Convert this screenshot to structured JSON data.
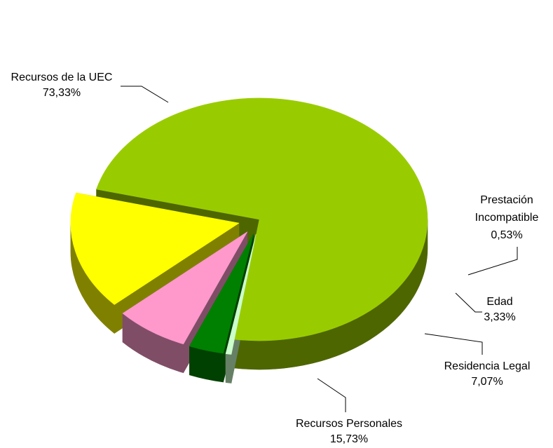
{
  "chart_data": {
    "type": "pie",
    "three_d": true,
    "exploded": true,
    "legend": "none",
    "title": "",
    "slices": [
      {
        "name": "Recursos de la UEC",
        "value": 73.33,
        "value_label": "73,33%",
        "top_color": "#99CC00",
        "side_color": "#4D6600"
      },
      {
        "name": "Prestación Incompatible",
        "value": 0.53,
        "value_label": "0,53%",
        "top_color": "#CCFFCC",
        "side_color": "#668066"
      },
      {
        "name": "Edad",
        "value": 3.33,
        "value_label": "3,33%",
        "top_color": "#008000",
        "side_color": "#004000"
      },
      {
        "name": "Residencia Legal",
        "value": 7.07,
        "value_label": "7,07%",
        "top_color": "#FF99CC",
        "side_color": "#804D66"
      },
      {
        "name": "Recursos Personales",
        "value": 15.73,
        "value_label": "15,73%",
        "top_color": "#FFFF00",
        "side_color": "#808000"
      }
    ]
  }
}
